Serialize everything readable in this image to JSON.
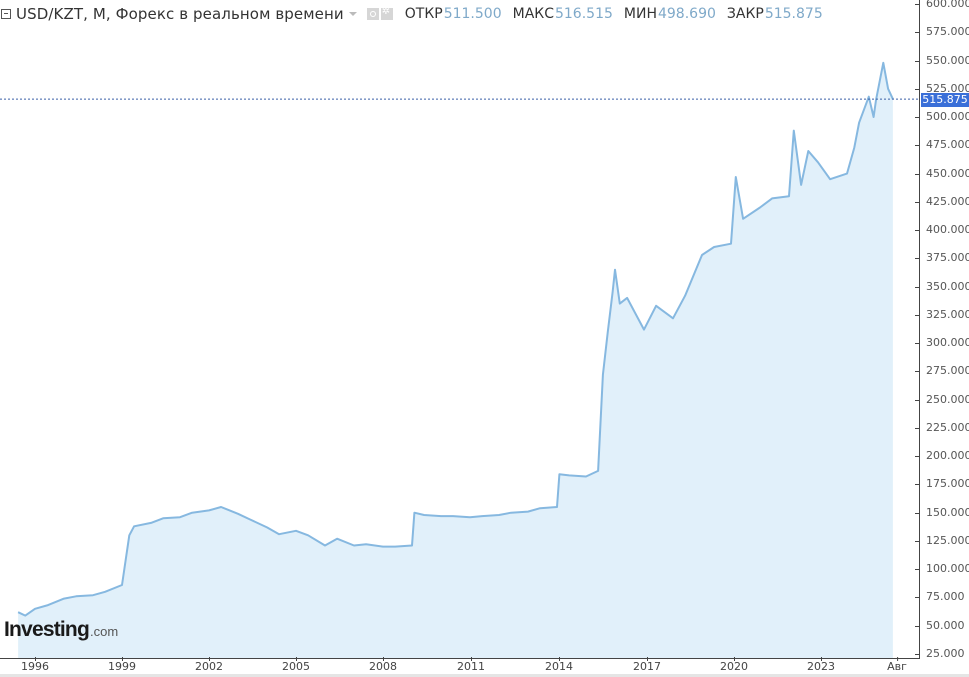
{
  "header": {
    "title": "USD/KZT, M, Форекс в реальном времени",
    "ohlc": [
      {
        "label": "ОТКР",
        "value": "511.500"
      },
      {
        "label": "МАКС",
        "value": "516.515"
      },
      {
        "label": "МИН",
        "value": "498.690"
      },
      {
        "label": "ЗАКР",
        "value": "515.875"
      }
    ]
  },
  "current_price": "515.875",
  "logo": {
    "main": "Investing",
    "suffix": ".com"
  },
  "colors": {
    "line": "#86b8e0",
    "fill": "#e1f0fa",
    "price_tag": "#3a6fd8",
    "price_line": "#3a5fa8"
  },
  "chart_data": {
    "type": "area",
    "title": "USD/KZT, M, Форекс в реальном времени",
    "xlabel": "",
    "ylabel": "",
    "ylim": [
      25,
      600
    ],
    "grid": false,
    "legend": "none",
    "y_ticks": [
      "600.000",
      "575.000",
      "550.000",
      "525.000",
      "500.000",
      "475.000",
      "450.000",
      "425.000",
      "400.000",
      "375.000",
      "350.000",
      "325.000",
      "300.000",
      "275.000",
      "250.000",
      "225.000",
      "200.000",
      "175.000",
      "150.000",
      "125.000",
      "100.000",
      "75.000",
      "50.000",
      "25.000"
    ],
    "x_ticks": [
      "1996",
      "1999",
      "2002",
      "2005",
      "2008",
      "2011",
      "2014",
      "2017",
      "2020",
      "2023",
      "Авг"
    ],
    "last_value": 515.875,
    "x": [
      "1995-06",
      "1995-09",
      "1996-01",
      "1996-06",
      "1997-01",
      "1997-06",
      "1998-01",
      "1998-06",
      "1999-01",
      "1999-04",
      "1999-06",
      "2000-01",
      "2000-06",
      "2001-01",
      "2001-06",
      "2002-01",
      "2002-06",
      "2003-01",
      "2003-06",
      "2004-01",
      "2004-06",
      "2005-01",
      "2005-06",
      "2006-01",
      "2006-06",
      "2007-01",
      "2007-06",
      "2008-01",
      "2008-06",
      "2009-01",
      "2009-02",
      "2009-06",
      "2010-01",
      "2010-06",
      "2011-01",
      "2011-06",
      "2012-01",
      "2012-06",
      "2013-01",
      "2013-06",
      "2014-01",
      "2014-02",
      "2014-06",
      "2015-01",
      "2015-06",
      "2015-08",
      "2015-10",
      "2015-12",
      "2016-01",
      "2016-03",
      "2016-06",
      "2017-01",
      "2017-06",
      "2018-01",
      "2018-06",
      "2019-01",
      "2019-06",
      "2020-01",
      "2020-03",
      "2020-06",
      "2021-01",
      "2021-06",
      "2022-01",
      "2022-03",
      "2022-06",
      "2022-09",
      "2023-01",
      "2023-06",
      "2024-01",
      "2024-04",
      "2024-06",
      "2024-10",
      "2024-12",
      "2025-01",
      "2025-04",
      "2025-06",
      "2025-08"
    ],
    "series": [
      {
        "name": "USD/KZT",
        "values": [
          62,
          59,
          65,
          68,
          74,
          76,
          77,
          80,
          86,
          130,
          138,
          141,
          145,
          146,
          150,
          152,
          155,
          149,
          144,
          137,
          131,
          134,
          130,
          121,
          127,
          121,
          122,
          120,
          120,
          121,
          150,
          148,
          147,
          147,
          146,
          147,
          148,
          150,
          151,
          154,
          155,
          184,
          183,
          182,
          187,
          272,
          310,
          345,
          365,
          335,
          340,
          312,
          333,
          322,
          342,
          378,
          385,
          388,
          447,
          410,
          420,
          428,
          430,
          488,
          440,
          470,
          460,
          445,
          450,
          473,
          495,
          518,
          500,
          515,
          548,
          525,
          515.875
        ]
      }
    ]
  }
}
